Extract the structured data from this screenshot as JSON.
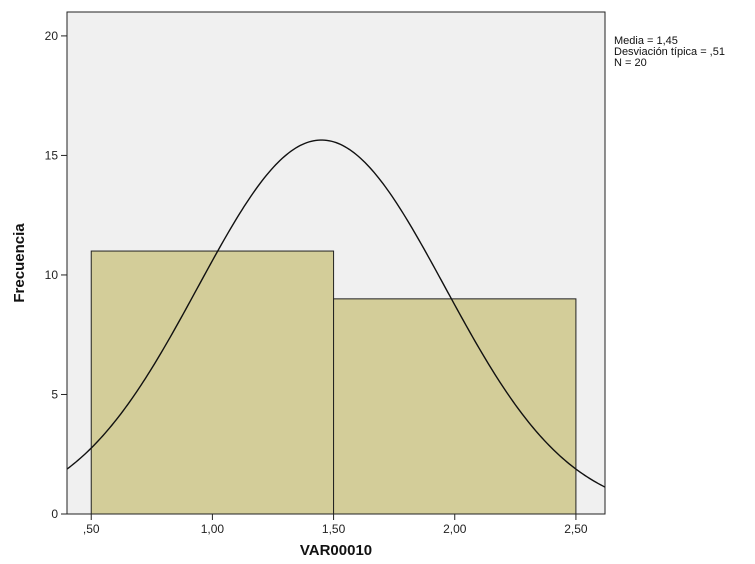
{
  "chart_data": {
    "type": "bar",
    "subtype": "histogram",
    "xlabel": "VAR00010",
    "ylabel": "Frecuencia",
    "xlim": [
      0.4,
      2.62
    ],
    "ylim": [
      0,
      21
    ],
    "x_ticks": [
      0.5,
      1.0,
      1.5,
      2.0,
      2.5
    ],
    "x_tick_labels": [
      ",50",
      "1,00",
      "1,50",
      "2,00",
      "2,50"
    ],
    "y_ticks": [
      0,
      5,
      10,
      15,
      20
    ],
    "y_tick_labels": [
      "0",
      "5",
      "10",
      "15",
      "20"
    ],
    "bins": [
      {
        "from": 0.5,
        "to": 1.5,
        "count": 11
      },
      {
        "from": 1.5,
        "to": 2.5,
        "count": 9
      }
    ],
    "normal_curve": {
      "mean": 1.45,
      "sd": 0.51,
      "n": 20,
      "bin_width": 1.0
    },
    "bar_color": "#d3cd99",
    "plot_background": "#f0f0f0",
    "grid": false,
    "legend": "top-right",
    "stats": {
      "media": "Media = 1,45",
      "desviacion": "Desviación típica = ,51",
      "n": "N = 20"
    }
  }
}
